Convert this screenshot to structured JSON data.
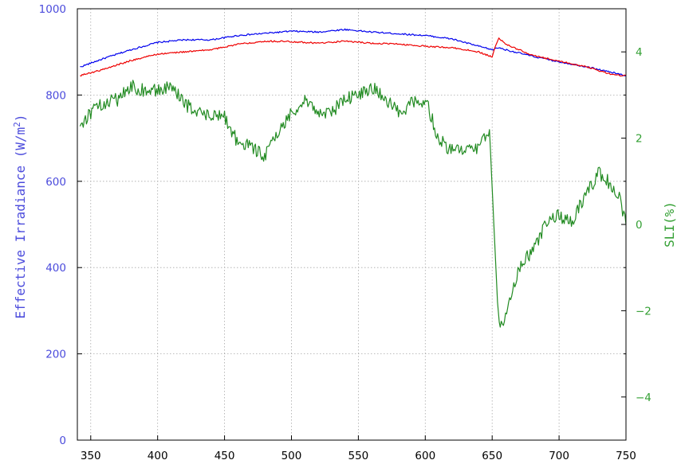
{
  "chart_data": {
    "type": "line",
    "title": "",
    "xlabel": "",
    "ylabel_left": "Effective Irradiance (W/m",
    "ylabel_left_sup": "2",
    "ylabel_left_close": ")",
    "ylabel_right": "SLI(%)",
    "xlim": [
      340,
      750
    ],
    "ylim_left": [
      0,
      1000
    ],
    "ylim_right": [
      -5,
      5
    ],
    "x_ticks": [
      350,
      400,
      450,
      500,
      550,
      600,
      650,
      700,
      750
    ],
    "y_left_ticks": [
      0,
      200,
      400,
      600,
      800,
      1000
    ],
    "y_right_ticks": [
      -4,
      -2,
      0,
      2,
      4
    ],
    "grid": true,
    "legend": "none",
    "colors": {
      "blue_series": "#0000ee",
      "red_series": "#ee0000",
      "green_series": "#228b22",
      "left_axis_text": "#4b4bdc",
      "right_axis_text": "#34a034",
      "bottom_axis_text": "#000000"
    },
    "series": [
      {
        "axis": "left",
        "color": "blue",
        "x": [
          342,
          360,
          380,
          400,
          420,
          440,
          460,
          480,
          500,
          520,
          540,
          560,
          580,
          600,
          620,
          640,
          650,
          655,
          660,
          680,
          700,
          720,
          740,
          750
        ],
        "y": [
          865,
          885,
          905,
          922,
          928,
          928,
          938,
          943,
          948,
          946,
          952,
          946,
          942,
          938,
          930,
          913,
          905,
          910,
          905,
          890,
          877,
          866,
          852,
          845
        ]
      },
      {
        "axis": "left",
        "color": "red",
        "x": [
          342,
          360,
          380,
          400,
          420,
          440,
          460,
          480,
          500,
          520,
          540,
          560,
          580,
          600,
          620,
          640,
          650,
          652,
          655,
          660,
          680,
          700,
          720,
          740,
          750
        ],
        "y": [
          845,
          860,
          880,
          895,
          900,
          905,
          918,
          925,
          924,
          920,
          925,
          920,
          918,
          913,
          910,
          900,
          888,
          910,
          932,
          918,
          892,
          878,
          866,
          847,
          845
        ]
      },
      {
        "axis": "right",
        "color": "green",
        "x": [
          342,
          350,
          360,
          370,
          380,
          390,
          400,
          410,
          420,
          430,
          440,
          450,
          460,
          470,
          480,
          490,
          500,
          510,
          520,
          530,
          540,
          550,
          560,
          570,
          580,
          590,
          600,
          610,
          620,
          630,
          640,
          648,
          652,
          654,
          656,
          660,
          670,
          680,
          690,
          700,
          710,
          720,
          730,
          740,
          745,
          750
        ],
        "y": [
          2.3,
          2.6,
          2.8,
          2.9,
          3.2,
          3.1,
          3.1,
          3.2,
          2.8,
          2.6,
          2.5,
          2.5,
          1.9,
          1.8,
          1.6,
          2.1,
          2.6,
          2.9,
          2.6,
          2.6,
          2.9,
          3.0,
          3.2,
          2.9,
          2.6,
          2.8,
          2.9,
          2.0,
          1.7,
          1.7,
          1.8,
          2.2,
          -0.5,
          -1.8,
          -2.5,
          -2.0,
          -1.0,
          -0.6,
          0.0,
          0.2,
          0.1,
          0.7,
          1.2,
          0.9,
          0.6,
          0.0
        ]
      }
    ]
  }
}
